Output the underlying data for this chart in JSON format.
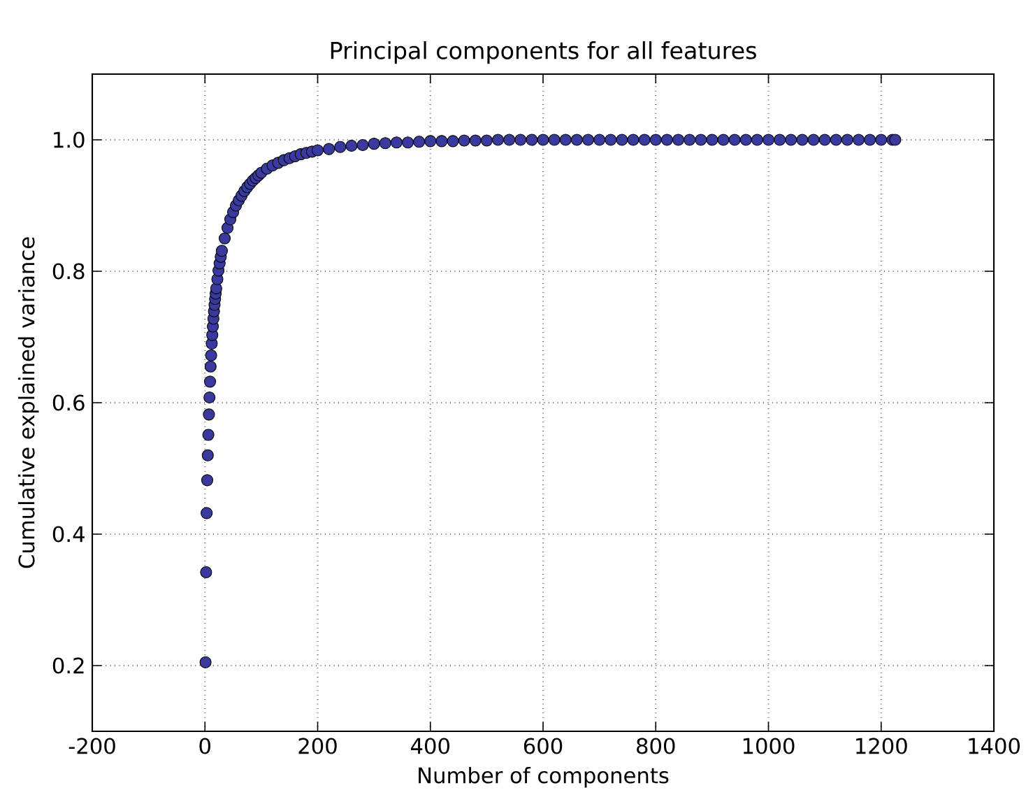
{
  "chart_data": {
    "type": "scatter",
    "title": "Principal components for all features",
    "xlabel": "Number of components",
    "ylabel": "Cumulative explained variance",
    "x": [
      1,
      2,
      3,
      4,
      5,
      6,
      7,
      8,
      9,
      10,
      11,
      12,
      13,
      14,
      15,
      16,
      17,
      18,
      19,
      20,
      22,
      24,
      26,
      28,
      30,
      35,
      40,
      45,
      50,
      55,
      60,
      65,
      70,
      75,
      80,
      85,
      90,
      95,
      100,
      110,
      120,
      130,
      140,
      150,
      160,
      170,
      180,
      190,
      200,
      220,
      240,
      260,
      280,
      300,
      320,
      340,
      360,
      380,
      400,
      420,
      440,
      460,
      480,
      500,
      520,
      540,
      560,
      580,
      600,
      620,
      640,
      660,
      680,
      700,
      720,
      740,
      760,
      780,
      800,
      820,
      840,
      860,
      880,
      900,
      920,
      940,
      960,
      980,
      1000,
      1020,
      1040,
      1060,
      1080,
      1100,
      1120,
      1140,
      1160,
      1180,
      1200,
      1220,
      1225
    ],
    "values": [
      0.205,
      0.342,
      0.432,
      0.482,
      0.52,
      0.551,
      0.582,
      0.608,
      0.632,
      0.655,
      0.672,
      0.69,
      0.703,
      0.716,
      0.728,
      0.739,
      0.749,
      0.758,
      0.766,
      0.774,
      0.788,
      0.801,
      0.812,
      0.822,
      0.831,
      0.85,
      0.866,
      0.879,
      0.89,
      0.9,
      0.908,
      0.915,
      0.922,
      0.928,
      0.933,
      0.938,
      0.942,
      0.946,
      0.95,
      0.956,
      0.961,
      0.965,
      0.969,
      0.972,
      0.975,
      0.978,
      0.98,
      0.982,
      0.984,
      0.986,
      0.989,
      0.991,
      0.992,
      0.994,
      0.995,
      0.996,
      0.996,
      0.997,
      0.998,
      0.998,
      0.998,
      0.999,
      0.999,
      0.999,
      1.0,
      1.0,
      1.0,
      1.0,
      1.0,
      1.0,
      1.0,
      1.0,
      1.0,
      1.0,
      1.0,
      1.0,
      1.0,
      1.0,
      1.0,
      1.0,
      1.0,
      1.0,
      1.0,
      1.0,
      1.0,
      1.0,
      1.0,
      1.0,
      1.0,
      1.0,
      1.0,
      1.0,
      1.0,
      1.0,
      1.0,
      1.0,
      1.0,
      1.0,
      1.0,
      1.0,
      1.0
    ],
    "color": "#3a3a9e",
    "marker": "circle",
    "grid": true,
    "xlim": [
      -200,
      1400
    ],
    "xticks": [
      -200,
      0,
      200,
      400,
      600,
      800,
      1000,
      1200,
      1400
    ],
    "ylim": [
      0.1,
      1.1
    ],
    "yticks": [
      {
        "value": 0.2,
        "label": "0.2"
      },
      {
        "value": 0.4,
        "label": "0.4"
      },
      {
        "value": 0.6,
        "label": "0.6"
      },
      {
        "value": 0.8,
        "label": "0.8"
      },
      {
        "value": 1.0,
        "label": "1.0"
      }
    ]
  }
}
